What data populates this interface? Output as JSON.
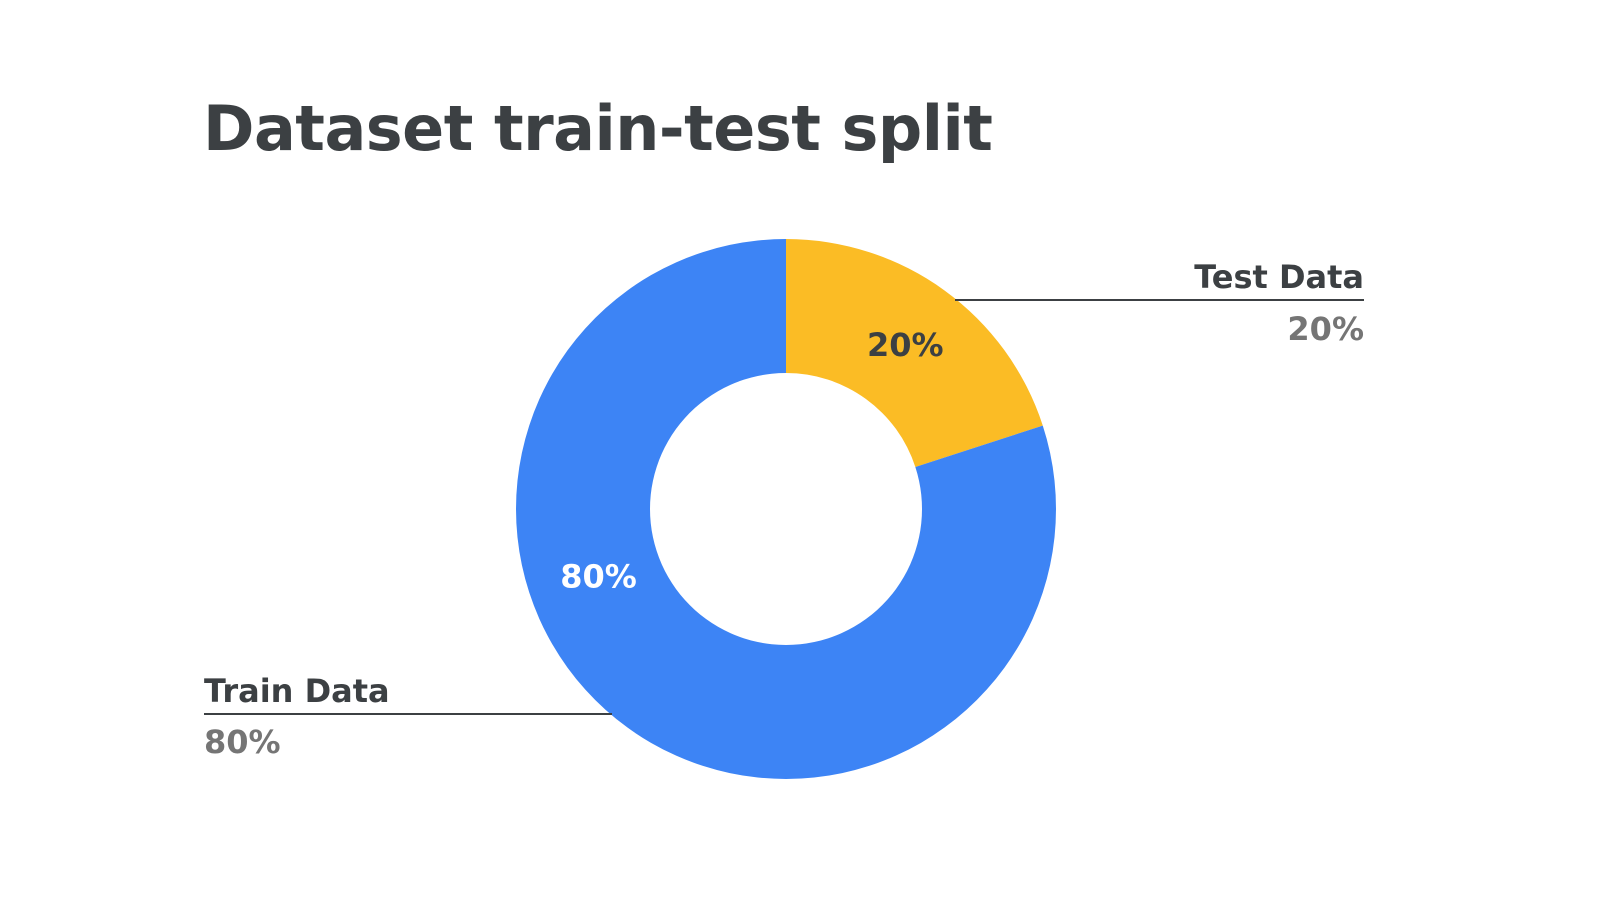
{
  "chart_data": {
    "type": "pie",
    "donut": true,
    "title": "Dataset train-test split",
    "slices": [
      {
        "label": "Test Data",
        "value": 20,
        "inner_label": "20%",
        "callout_value": "20%",
        "color": "#fbbc25",
        "inner_label_color": "#3c4043",
        "callout_side": "right"
      },
      {
        "label": "Train Data",
        "value": 80,
        "inner_label": "80%",
        "callout_value": "80%",
        "color": "#3d84f5",
        "inner_label_color": "#ffffff",
        "callout_side": "left"
      }
    ],
    "legend": "callouts"
  }
}
